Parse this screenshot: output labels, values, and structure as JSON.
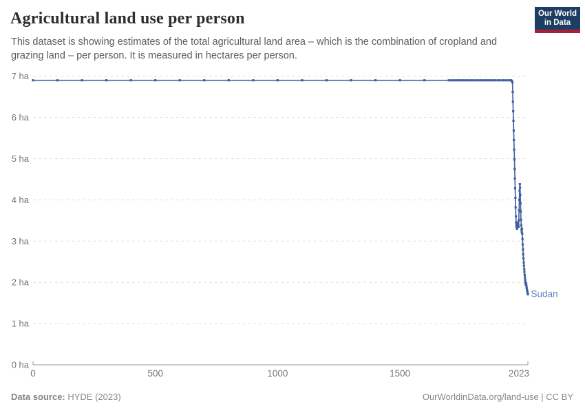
{
  "header": {
    "title": "Agricultural land use per person",
    "subtitle": "This dataset is showing estimates of the total agricultural land area – which is the combination of cropland and grazing land – per person. It is measured in hectares per person.",
    "logo": {
      "line1": "Our World",
      "line2": "in Data"
    }
  },
  "colors": {
    "line": "#44639f",
    "marker": "#3f5f9e",
    "entity_label": "#6080b8",
    "grid": "#e0e0e0",
    "axis": "#9a9a9a",
    "tick_text": "#757575",
    "logo_navy": "#1d3d63",
    "logo_red": "#a52139"
  },
  "chart_data": {
    "type": "line",
    "title": "Agricultural land use per person",
    "unit": "hectares per person",
    "xlabel": "",
    "ylabel": "",
    "xlim": [
      0,
      2023
    ],
    "ylim": [
      0,
      7
    ],
    "grid": "horizontal-dashed",
    "legend_position": "end-of-line-label",
    "yticks": [
      {
        "value": 0,
        "label": "0 ha"
      },
      {
        "value": 1,
        "label": "1 ha"
      },
      {
        "value": 2,
        "label": "2 ha"
      },
      {
        "value": 3,
        "label": "3 ha"
      },
      {
        "value": 4,
        "label": "4 ha"
      },
      {
        "value": 5,
        "label": "5 ha"
      },
      {
        "value": 6,
        "label": "6 ha"
      },
      {
        "value": 7,
        "label": "7 ha"
      }
    ],
    "xticks": [
      {
        "value": 0,
        "label": "0"
      },
      {
        "value": 500,
        "label": "500"
      },
      {
        "value": 1000,
        "label": "1000"
      },
      {
        "value": 1500,
        "label": "1500"
      },
      {
        "value": 2023,
        "label": "2023"
      }
    ],
    "series": [
      {
        "name": "Sudan",
        "points": [
          [
            0,
            6.9
          ],
          [
            100,
            6.9
          ],
          [
            200,
            6.9
          ],
          [
            300,
            6.9
          ],
          [
            400,
            6.9
          ],
          [
            500,
            6.9
          ],
          [
            600,
            6.9
          ],
          [
            700,
            6.9
          ],
          [
            800,
            6.9
          ],
          [
            900,
            6.9
          ],
          [
            1000,
            6.9
          ],
          [
            1100,
            6.9
          ],
          [
            1200,
            6.9
          ],
          [
            1300,
            6.9
          ],
          [
            1400,
            6.9
          ],
          [
            1500,
            6.9
          ],
          [
            1600,
            6.9
          ],
          [
            1700,
            6.9
          ],
          [
            1710,
            6.9
          ],
          [
            1720,
            6.9
          ],
          [
            1730,
            6.9
          ],
          [
            1740,
            6.9
          ],
          [
            1750,
            6.9
          ],
          [
            1760,
            6.9
          ],
          [
            1770,
            6.9
          ],
          [
            1780,
            6.9
          ],
          [
            1790,
            6.9
          ],
          [
            1800,
            6.9
          ],
          [
            1810,
            6.9
          ],
          [
            1820,
            6.9
          ],
          [
            1830,
            6.9
          ],
          [
            1840,
            6.9
          ],
          [
            1850,
            6.9
          ],
          [
            1860,
            6.9
          ],
          [
            1870,
            6.9
          ],
          [
            1880,
            6.9
          ],
          [
            1890,
            6.9
          ],
          [
            1900,
            6.9
          ],
          [
            1910,
            6.9
          ],
          [
            1920,
            6.9
          ],
          [
            1930,
            6.9
          ],
          [
            1940,
            6.9
          ],
          [
            1950,
            6.9
          ],
          [
            1955,
            6.9
          ],
          [
            1958,
            6.88
          ],
          [
            1960,
            6.85
          ],
          [
            1961,
            6.62
          ],
          [
            1962,
            6.38
          ],
          [
            1963,
            6.15
          ],
          [
            1964,
            5.92
          ],
          [
            1965,
            5.68
          ],
          [
            1966,
            5.45
          ],
          [
            1967,
            5.22
          ],
          [
            1968,
            4.98
          ],
          [
            1969,
            4.75
          ],
          [
            1970,
            4.52
          ],
          [
            1971,
            4.28
          ],
          [
            1972,
            4.05
          ],
          [
            1973,
            3.82
          ],
          [
            1974,
            3.6
          ],
          [
            1975,
            3.45
          ],
          [
            1976,
            3.38
          ],
          [
            1977,
            3.35
          ],
          [
            1978,
            3.32
          ],
          [
            1979,
            3.3
          ],
          [
            1980,
            3.34
          ],
          [
            1981,
            3.38
          ],
          [
            1982,
            3.42
          ],
          [
            1983,
            3.45
          ],
          [
            1984,
            3.4
          ],
          [
            1985,
            3.35
          ],
          [
            1986,
            3.5
          ],
          [
            1987,
            3.75
          ],
          [
            1988,
            4.0
          ],
          [
            1989,
            4.22
          ],
          [
            1990,
            4.38
          ],
          [
            1991,
            4.3
          ],
          [
            1992,
            4.12
          ],
          [
            1993,
            3.92
          ],
          [
            1994,
            3.72
          ],
          [
            1995,
            3.52
          ],
          [
            1996,
            3.38
          ],
          [
            1997,
            3.28
          ],
          [
            1998,
            3.22
          ],
          [
            1999,
            3.3
          ],
          [
            2000,
            3.18
          ],
          [
            2001,
            3.05
          ],
          [
            2002,
            2.92
          ],
          [
            2003,
            2.8
          ],
          [
            2004,
            2.68
          ],
          [
            2005,
            2.58
          ],
          [
            2006,
            2.48
          ],
          [
            2007,
            2.4
          ],
          [
            2008,
            2.32
          ],
          [
            2009,
            2.25
          ],
          [
            2010,
            2.18
          ],
          [
            2011,
            2.12
          ],
          [
            2012,
            2.06
          ],
          [
            2013,
            2.0
          ],
          [
            2014,
            1.95
          ],
          [
            2015,
            1.95
          ],
          [
            2016,
            1.98
          ],
          [
            2017,
            1.92
          ],
          [
            2018,
            1.87
          ],
          [
            2019,
            1.83
          ],
          [
            2020,
            1.8
          ],
          [
            2021,
            1.77
          ],
          [
            2022,
            1.74
          ],
          [
            2023,
            1.71
          ]
        ]
      }
    ]
  },
  "footer": {
    "source_label": "Data source:",
    "source_value": " HYDE (2023)",
    "right_text": "OurWorldinData.org/land-use | CC BY"
  }
}
